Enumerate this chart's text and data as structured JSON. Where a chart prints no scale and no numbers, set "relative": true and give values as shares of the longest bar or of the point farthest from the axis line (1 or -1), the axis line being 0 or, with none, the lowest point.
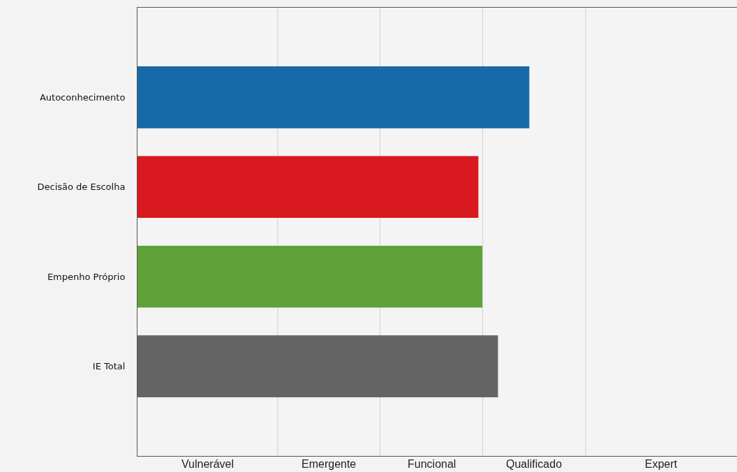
{
  "chart_data": {
    "type": "bar",
    "orientation": "horizontal",
    "relative": true,
    "categories": [
      "Autoconhecimento",
      "Decisão de Escolha",
      "Empenho Próprio",
      "IE Total"
    ],
    "values": [
      1,
      0.87,
      0.88,
      0.92
    ],
    "colors": [
      "#166aa8",
      "#d91920",
      "#5fa338",
      "#646464"
    ],
    "xlim": [
      0,
      1.53
    ],
    "ref_lines": [
      {
        "axis": "x",
        "value": 0.358,
        "color": "#cfcfcf"
      },
      {
        "axis": "x",
        "value": 0.619,
        "color": "#cfcfcf"
      },
      {
        "axis": "x",
        "value": 0.881,
        "color": "#cfcfcf"
      },
      {
        "axis": "x",
        "value": 1.144,
        "color": "#cfcfcf"
      }
    ],
    "annotations": [
      "Vulnerável",
      "Emergente",
      "Funcional",
      "Qualificado",
      "Expert"
    ],
    "legend": false
  }
}
